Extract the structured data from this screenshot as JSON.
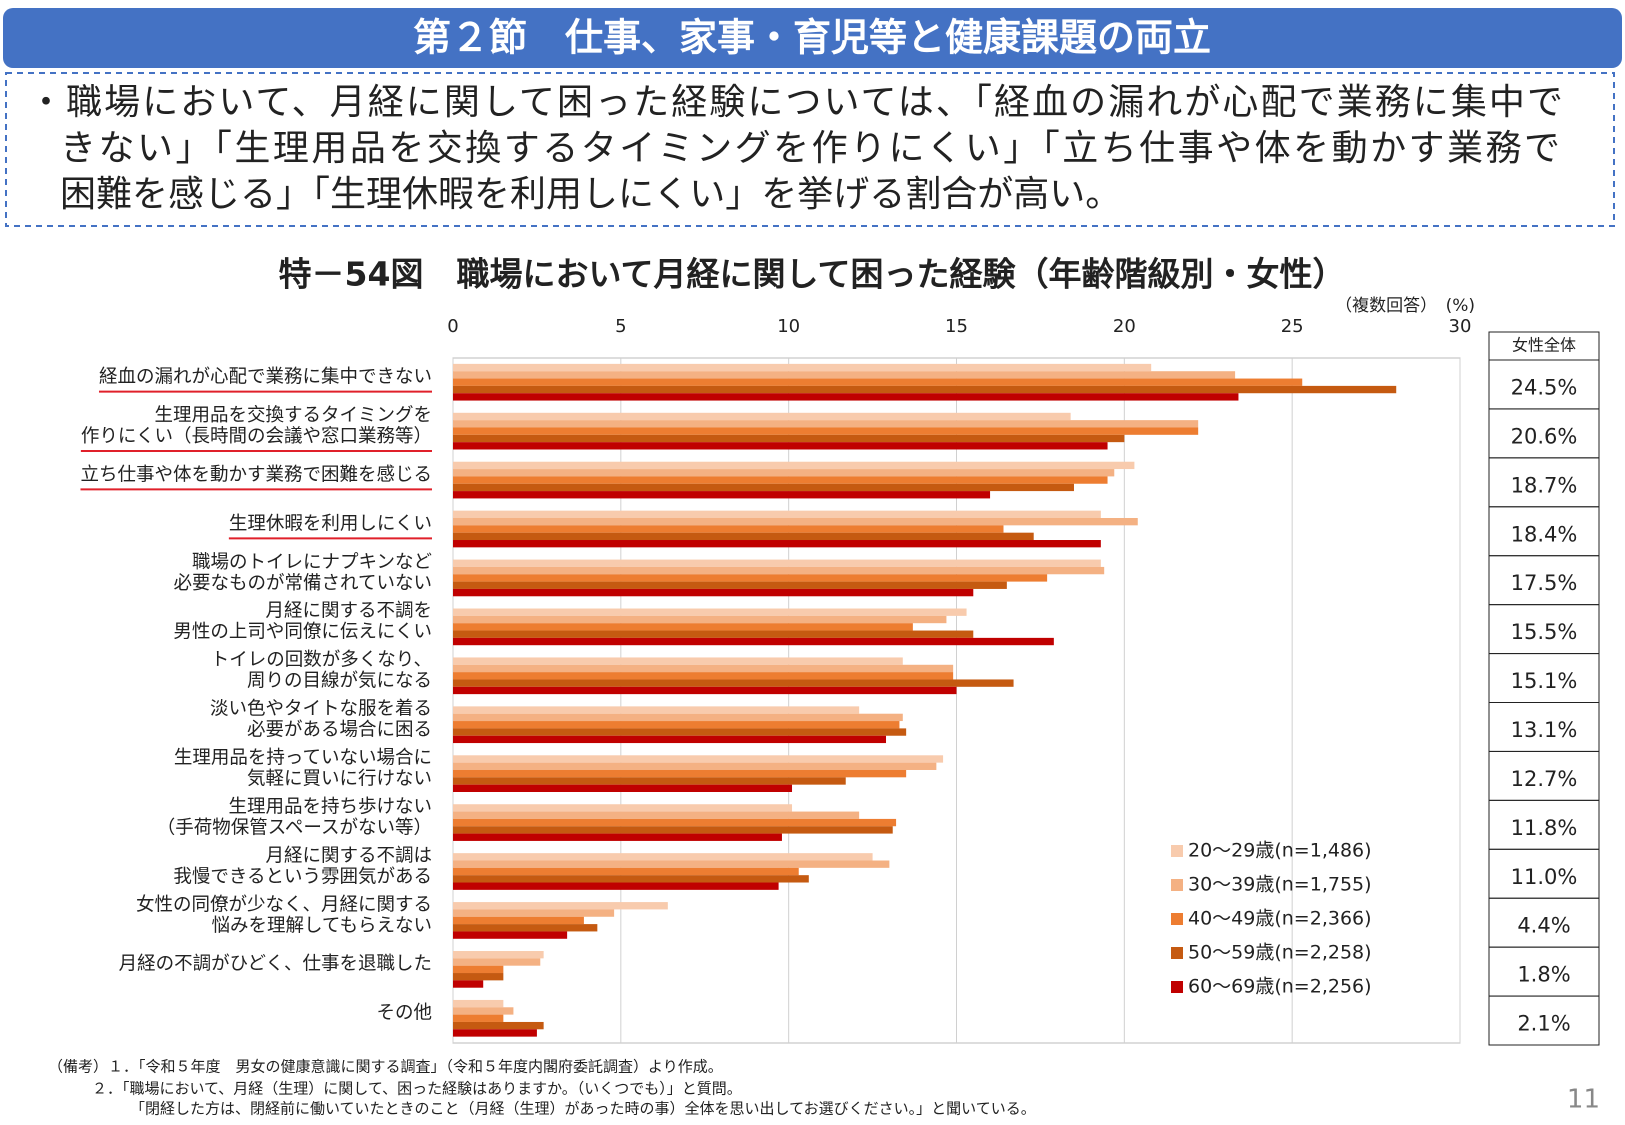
{
  "header": {
    "title": "第２節　仕事、家事・育児等と健康課題の両立"
  },
  "bullet": {
    "lines": [
      "・職場において、月経に関して困った経験については、「経血の漏れが心配で業務に集中で",
      "きない」「生理用品を交換するタイミングを作りにくい」「立ち仕事や体を動かす業務で",
      "困難を感じる」「生理休暇を利用しにくい」を挙げる割合が高い。"
    ]
  },
  "chart_data": {
    "type": "hbar",
    "title": "特－54図　職場において月経に関して困った経験（年齢階級別・女性）",
    "unit_note": "（複数回答）　(%)",
    "categories": [
      "経血の漏れが心配で業務に集中できない",
      "生理用品を交換するタイミングを\n作りにくい（長時間の会議や窓口業務等）",
      "立ち仕事や体を動かす業務で困難を感じる",
      "生理休暇を利用しにくい",
      "職場のトイレにナプキンなど\n必要なものが常備されていない",
      "月経に関する不調を\n男性の上司や同僚に伝えにくい",
      "トイレの回数が多くなり、\n周りの目線が気になる",
      "淡い色やタイトな服を着る\n必要がある場合に困る",
      "生理用品を持っていない場合に\n気軽に買いに行けない",
      "生理用品を持ち歩けない\n（手荷物保管スペースがない等）",
      "月経に関する不調は\n我慢できるという雰囲気がある",
      "女性の同僚が少なく、月経に関する\n悩みを理解してもらえない",
      "月経の不調がひどく、仕事を退職した",
      "その他"
    ],
    "underline": [
      true,
      true,
      true,
      true,
      false,
      false,
      false,
      false,
      false,
      false,
      false,
      false,
      false,
      false
    ],
    "series": [
      {
        "name": "20〜29歳(n=1,486)",
        "color": "#f8cbad",
        "values": [
          20.8,
          18.4,
          20.3,
          19.3,
          19.3,
          15.3,
          13.4,
          12.1,
          14.6,
          10.1,
          12.5,
          6.4,
          2.7,
          1.5
        ]
      },
      {
        "name": "30〜39歳(n=1,755)",
        "color": "#f4b183",
        "values": [
          23.3,
          22.2,
          19.7,
          20.4,
          19.4,
          14.7,
          14.9,
          13.4,
          14.4,
          12.1,
          13.0,
          4.8,
          2.6,
          1.8
        ]
      },
      {
        "name": "40〜49歳(n=2,366)",
        "color": "#ed7d31",
        "values": [
          25.3,
          22.2,
          19.5,
          16.4,
          17.7,
          13.7,
          14.9,
          13.3,
          13.5,
          13.2,
          10.3,
          3.9,
          1.5,
          1.5
        ]
      },
      {
        "name": "50〜59歳(n=2,258)",
        "color": "#c55a11",
        "values": [
          28.1,
          20.0,
          18.5,
          17.3,
          16.5,
          15.5,
          16.7,
          13.5,
          11.7,
          13.1,
          10.6,
          4.3,
          1.5,
          2.7
        ]
      },
      {
        "name": "60〜69歳(n=2,256)",
        "color": "#c00000",
        "values": [
          23.4,
          19.5,
          16.0,
          19.3,
          15.5,
          17.9,
          15.0,
          12.9,
          10.1,
          9.8,
          9.7,
          3.4,
          0.9,
          2.5
        ]
      }
    ],
    "xlim": [
      0,
      30
    ],
    "xticks": [
      0,
      5,
      10,
      15,
      20,
      25,
      30
    ],
    "grid": true
  },
  "side_table": {
    "header": "女性全体",
    "values": [
      "24.5%",
      "20.6%",
      "18.7%",
      "18.4%",
      "17.5%",
      "15.5%",
      "15.1%",
      "13.1%",
      "12.7%",
      "11.8%",
      "11.0%",
      "4.4%",
      "1.8%",
      "2.1%"
    ]
  },
  "footnotes": [
    "（備考）１．「令和５年度　男女の健康意識に関する調査」（令和５年度内閣府委託調査）より作成。",
    "２．「職場において、月経（生理）に関して、困った経験はありますか。（いくつでも）」と質問。",
    "「閉経した方は、閉経前に働いていたときのこと（月経（生理）があった時の事）全体を思い出してお選びください。」と聞いている。"
  ],
  "page_number": "11"
}
